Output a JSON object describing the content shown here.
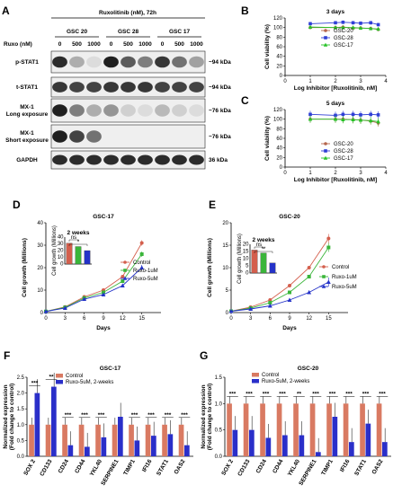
{
  "panels": {
    "A": "A",
    "B": "B",
    "C": "C",
    "D": "D",
    "E": "E",
    "F": "F",
    "G": "G"
  },
  "blot": {
    "header": "Ruxolitinib (nM), 72h",
    "ruxo_label": "Ruxo (nM)",
    "groups": [
      "GSC 20",
      "GSC 28",
      "GSC 17"
    ],
    "doses": [
      "0",
      "500",
      "1000"
    ],
    "rows": [
      {
        "name": "p-STAT1",
        "size": "~94 kDa",
        "intensity": [
          0.9,
          0.35,
          0.15,
          0.95,
          0.7,
          0.55,
          0.85,
          0.6,
          0.4
        ]
      },
      {
        "name": "t-STAT1",
        "size": "~94 kDa",
        "intensity": [
          0.85,
          0.8,
          0.8,
          0.85,
          0.85,
          0.85,
          0.8,
          0.8,
          0.8
        ]
      },
      {
        "name": "MX-1",
        "sub": "Long exposure",
        "size": "~76 kDa",
        "intensity": [
          0.95,
          0.55,
          0.35,
          0.45,
          0.2,
          0.15,
          0.3,
          0.2,
          0.15
        ]
      },
      {
        "name": "MX-1",
        "sub": "Short exposure",
        "size": "~76 kDa",
        "intensity": [
          0.95,
          0.8,
          0.6,
          0,
          0,
          0,
          0,
          0,
          0
        ]
      },
      {
        "name": "GAPDH",
        "size": "36 kDa",
        "intensity": [
          0.9,
          0.9,
          0.9,
          0.9,
          0.9,
          0.9,
          0.9,
          0.9,
          0.9
        ]
      }
    ]
  },
  "chart_data": [
    {
      "panel": "B",
      "type": "line",
      "title": "3 days",
      "xlabel": "Log Inhibitor [Ruxolitinib, nM]",
      "ylabel": "Cell viability (%)",
      "xlim": [
        0,
        4
      ],
      "ylim": [
        0,
        120
      ],
      "xticks": [
        0,
        1,
        2,
        3,
        4
      ],
      "yticks": [
        0,
        20,
        40,
        60,
        80,
        100,
        120
      ],
      "x": [
        1.0,
        2.0,
        2.3,
        2.7,
        3.0,
        3.4,
        3.7
      ],
      "series": [
        {
          "name": "GSC-20",
          "color": "#b5654c",
          "marker": "circle",
          "values": [
            100,
            100,
            101,
            99,
            99,
            98,
            96
          ]
        },
        {
          "name": "GSC-28",
          "color": "#2f3fd6",
          "marker": "square",
          "values": [
            108,
            110,
            111,
            110,
            109,
            110,
            106
          ]
        },
        {
          "name": "GSC-17",
          "color": "#27c227",
          "marker": "triangle",
          "values": [
            101,
            100,
            100,
            100,
            99,
            98,
            97
          ]
        }
      ]
    },
    {
      "panel": "C",
      "type": "line",
      "title": "5 days",
      "xlabel": "Log Inhibitor [Ruxolitinib, nM]",
      "ylabel": "Cell viability (%)",
      "xlim": [
        0,
        4
      ],
      "ylim": [
        0,
        120
      ],
      "xticks": [
        0,
        1,
        2,
        3,
        4
      ],
      "yticks": [
        0,
        20,
        40,
        60,
        80,
        100,
        120
      ],
      "x": [
        1.0,
        2.0,
        2.3,
        2.7,
        3.0,
        3.4,
        3.7
      ],
      "series": [
        {
          "name": "GSC-20",
          "color": "#b5654c",
          "marker": "circle",
          "values": [
            100,
            100,
            100,
            99,
            98,
            96,
            92
          ]
        },
        {
          "name": "GSC-28",
          "color": "#2f3fd6",
          "marker": "square",
          "values": [
            110,
            108,
            110,
            110,
            109,
            110,
            109
          ]
        },
        {
          "name": "GSC-17",
          "color": "#27c227",
          "marker": "triangle",
          "values": [
            100,
            100,
            99,
            99,
            98,
            97,
            95
          ]
        }
      ]
    },
    {
      "panel": "D",
      "type": "line",
      "title": "GSC-17",
      "xlabel": "Days",
      "ylabel": "Cell growth (Millions)",
      "xlim": [
        0,
        18
      ],
      "ylim": [
        0,
        40
      ],
      "xticks": [
        0,
        3,
        6,
        9,
        12,
        15
      ],
      "yticks": [
        0,
        10,
        20,
        30,
        40
      ],
      "x": [
        0,
        3,
        6,
        9,
        12,
        15
      ],
      "series": [
        {
          "name": "Control",
          "color": "#d45f4d",
          "marker": "circle",
          "values": [
            0.5,
            2.5,
            7,
            10,
            16,
            31
          ]
        },
        {
          "name": "Ruxo-1uM",
          "color": "#3ab53a",
          "marker": "square",
          "values": [
            0.5,
            2.3,
            6.5,
            9,
            14,
            26
          ]
        },
        {
          "name": "Ruxo-5uM",
          "color": "#2432c8",
          "marker": "triangle",
          "values": [
            0.5,
            2,
            6,
            8,
            12,
            20
          ]
        }
      ],
      "inset": {
        "title": "2 weeks",
        "ylabel": "Cell growth (Millions)",
        "ylim": [
          0,
          40
        ],
        "yticks": [
          0,
          10,
          20,
          30,
          40
        ],
        "values": [
          31,
          26,
          20
        ],
        "colors": [
          "#d45f4d",
          "#3ab53a",
          "#2432c8"
        ],
        "annotations": [
          {
            "from": 0,
            "to": 1,
            "label": "ns"
          },
          {
            "from": 0,
            "to": 2,
            "label": "*"
          }
        ]
      }
    },
    {
      "panel": "E",
      "type": "line",
      "title": "GSC-20",
      "xlabel": "Days",
      "ylabel": "Cell growth (Millions)",
      "xlim": [
        0,
        18
      ],
      "ylim": [
        0,
        20
      ],
      "xticks": [
        0,
        3,
        6,
        9,
        12,
        15
      ],
      "yticks": [
        0,
        5,
        10,
        15,
        20
      ],
      "x": [
        0,
        3,
        6,
        9,
        12,
        15
      ],
      "series": [
        {
          "name": "Control",
          "color": "#d45f4d",
          "marker": "circle",
          "values": [
            0.3,
            1.2,
            2.8,
            6,
            10,
            16.5
          ]
        },
        {
          "name": "Ruxo-1uM",
          "color": "#3ab53a",
          "marker": "square",
          "values": [
            0.3,
            1,
            2.2,
            4.5,
            8,
            14.5
          ]
        },
        {
          "name": "Ruxo-5uM",
          "color": "#2432c8",
          "marker": "triangle",
          "values": [
            0.3,
            0.8,
            1.5,
            2.8,
            4.5,
            6.8
          ]
        }
      ],
      "inset": {
        "title": "2 weeks",
        "ylabel": "Cell growth (Millions)",
        "ylim": [
          0,
          20
        ],
        "yticks": [
          0,
          5,
          10,
          15,
          20
        ],
        "values": [
          16,
          14,
          7
        ],
        "colors": [
          "#d45f4d",
          "#3ab53a",
          "#2432c8"
        ],
        "annotations": [
          {
            "from": 0,
            "to": 1,
            "label": "ns"
          },
          {
            "from": 0,
            "to": 2,
            "label": "**"
          }
        ]
      }
    },
    {
      "panel": "F",
      "type": "bar",
      "title": "GSC-17",
      "ylabel": "Normalized expression (Fold change to control)",
      "ylim": [
        0,
        2.5
      ],
      "yticks": [
        0.0,
        0.5,
        1.0,
        1.5,
        2.0,
        2.5
      ],
      "categories": [
        "SOX 2",
        "CD133",
        "CD24",
        "CD44",
        "YKL40",
        "SERPINE1",
        "TIMP1",
        "IFI16",
        "STAT1",
        "OAS2"
      ],
      "series": [
        {
          "name": "Control",
          "color": "#d97a62",
          "values": [
            1,
            1,
            1,
            1,
            1,
            1,
            1,
            1,
            1,
            1
          ]
        },
        {
          "name": "Ruxo-5uM, 2-weeks",
          "color": "#2a2fc9",
          "values": [
            2.0,
            2.2,
            0.35,
            0.3,
            0.6,
            1.25,
            0.5,
            0.65,
            0.7,
            0.35
          ]
        }
      ],
      "significance": [
        "***",
        "**",
        "***",
        "***",
        "***",
        "",
        "***",
        "***",
        "***",
        "***"
      ]
    },
    {
      "panel": "G",
      "type": "bar",
      "title": "GSC-20",
      "ylabel": "Normalized expression (Fold change to control)",
      "ylim": [
        0,
        1.5
      ],
      "yticks": [
        0.0,
        0.5,
        1.0,
        1.5
      ],
      "categories": [
        "SOX 2",
        "CD133",
        "CD24",
        "CD44",
        "YKL40",
        "SERPINE1",
        "TIMP1",
        "IFI16",
        "STAT1",
        "OAS2"
      ],
      "series": [
        {
          "name": "Control",
          "color": "#d97a62",
          "values": [
            1,
            1,
            1,
            1,
            1,
            1,
            1,
            1,
            1,
            1
          ]
        },
        {
          "name": "Ruxo-5uM, 2-weeks",
          "color": "#2a2fc9",
          "values": [
            0.5,
            0.5,
            0.35,
            0.4,
            0.4,
            0.08,
            0.75,
            0.27,
            0.62,
            0.27
          ]
        }
      ],
      "significance": [
        "***",
        "***",
        "***",
        "***",
        "**",
        "***",
        "***",
        "***",
        "***",
        "***"
      ]
    }
  ]
}
